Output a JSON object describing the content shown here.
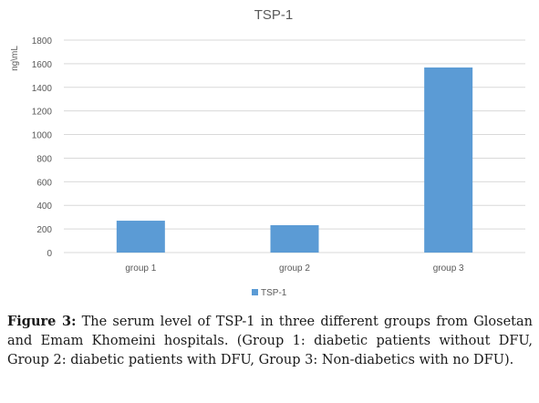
{
  "caption": {
    "label": "Figure 3:",
    "text": "The serum level of TSP-1 in three different groups from Glosetan and Emam Khomeini hospitals. (Group 1: diabetic patients without DFU, Group 2: diabetic patients with DFU, Group 3: Non-diabetics with no DFU)."
  },
  "chart_data": {
    "type": "bar",
    "title": "TSP-1",
    "xlabel": "",
    "ylabel": "ng\\mL",
    "categories": [
      "group 1",
      "group 2",
      "group 3"
    ],
    "series": [
      {
        "name": "TSP-1",
        "values": [
          270,
          232,
          1568
        ],
        "color": "#5b9bd5"
      }
    ],
    "ylim": [
      0,
      1800
    ],
    "yticks": [
      0,
      200,
      400,
      600,
      800,
      1000,
      1200,
      1400,
      1600,
      1800
    ],
    "grid": true,
    "legend_position": "bottom"
  }
}
